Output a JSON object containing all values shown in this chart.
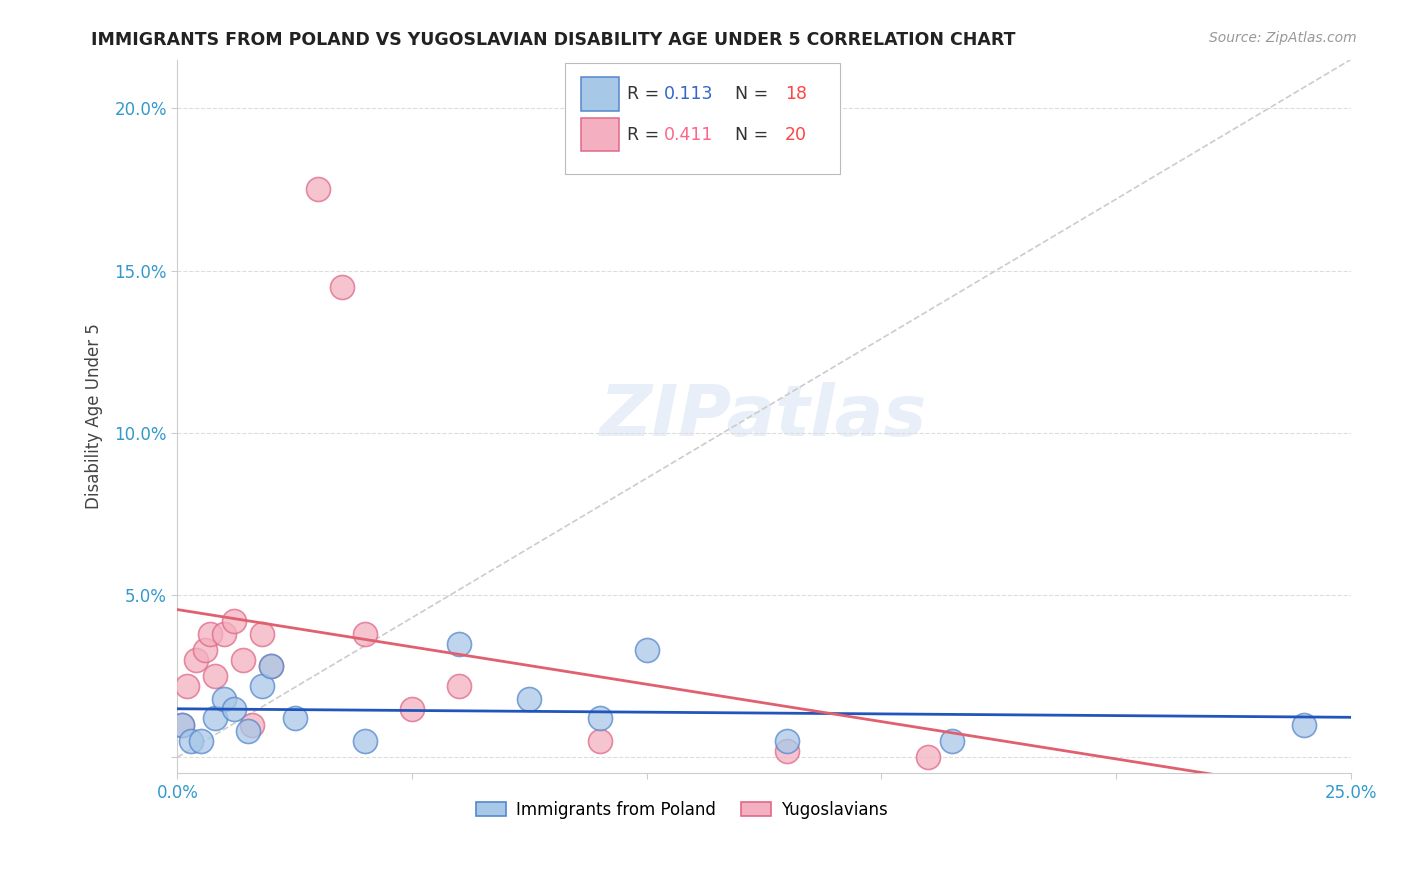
{
  "title": "IMMIGRANTS FROM POLAND VS YUGOSLAVIAN DISABILITY AGE UNDER 5 CORRELATION CHART",
  "source": "Source: ZipAtlas.com",
  "ylabel": "Disability Age Under 5",
  "xlim": [
    0.0,
    0.25
  ],
  "ylim": [
    -0.005,
    0.215
  ],
  "poland_R": 0.113,
  "poland_N": 18,
  "yugoslav_R": 0.411,
  "yugoslav_N": 20,
  "poland_scatter_face": "#a8c8e8",
  "poland_scatter_edge": "#5588cc",
  "yugoslav_scatter_face": "#f4b0c0",
  "yugoslav_scatter_edge": "#e06888",
  "poland_line_color": "#2255bb",
  "yugoslav_line_color": "#e06070",
  "diagonal_color": "#cccccc",
  "background_color": "#ffffff",
  "grid_color": "#dddddd",
  "poland_x": [
    0.001,
    0.003,
    0.005,
    0.008,
    0.01,
    0.012,
    0.015,
    0.018,
    0.02,
    0.025,
    0.04,
    0.06,
    0.075,
    0.09,
    0.1,
    0.13,
    0.165,
    0.24
  ],
  "poland_y": [
    0.01,
    0.005,
    0.005,
    0.012,
    0.018,
    0.015,
    0.008,
    0.022,
    0.028,
    0.012,
    0.005,
    0.035,
    0.018,
    0.012,
    0.033,
    0.005,
    0.005,
    0.01
  ],
  "yugoslav_x": [
    0.001,
    0.002,
    0.004,
    0.006,
    0.007,
    0.008,
    0.01,
    0.012,
    0.014,
    0.016,
    0.018,
    0.02,
    0.03,
    0.035,
    0.04,
    0.05,
    0.06,
    0.09,
    0.13,
    0.16
  ],
  "yugoslav_y": [
    0.01,
    0.022,
    0.03,
    0.033,
    0.038,
    0.025,
    0.038,
    0.042,
    0.03,
    0.01,
    0.038,
    0.028,
    0.175,
    0.145,
    0.038,
    0.015,
    0.022,
    0.005,
    0.002,
    0.0
  ]
}
